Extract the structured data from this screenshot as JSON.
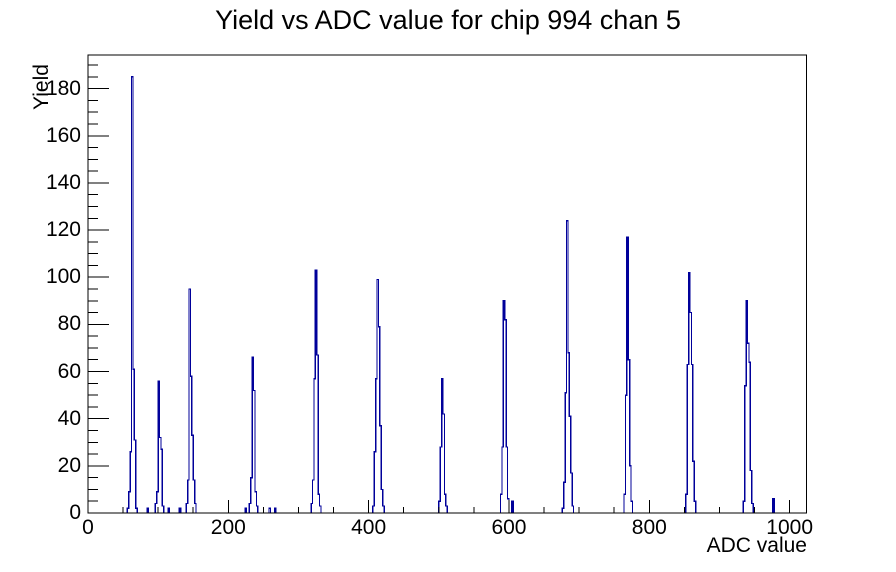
{
  "page": {
    "background": "#ffffff"
  },
  "chart_data": {
    "type": "bar",
    "style": "step-histogram",
    "title": "Yield vs ADC value for chip 994 chan 5",
    "xlabel": "ADC value",
    "ylabel": "Yield",
    "xlim": [
      0,
      1024
    ],
    "ylim": [
      0,
      194.25
    ],
    "x_major_ticks": [
      0,
      200,
      400,
      600,
      800,
      1000
    ],
    "x_minor_tick_step": 50,
    "y_major_ticks": [
      0,
      20,
      40,
      60,
      80,
      100,
      120,
      140,
      160,
      180
    ],
    "y_minor_tick_step": 5,
    "grid": false,
    "legend": "none",
    "bin_width": 2,
    "line_color": "#00009a",
    "axis_color": "#000000",
    "background_color": "#ffffff",
    "peak_summary": [
      {
        "adc": 62,
        "yield": 185
      },
      {
        "adc": 100,
        "yield": 56
      },
      {
        "adc": 144,
        "yield": 95
      },
      {
        "adc": 234,
        "yield": 66
      },
      {
        "adc": 324,
        "yield": 103
      },
      {
        "adc": 412,
        "yield": 99
      },
      {
        "adc": 504,
        "yield": 57
      },
      {
        "adc": 592,
        "yield": 90
      },
      {
        "adc": 682,
        "yield": 124
      },
      {
        "adc": 768,
        "yield": 117
      },
      {
        "adc": 856,
        "yield": 102
      },
      {
        "adc": 938,
        "yield": 90
      }
    ],
    "bins": [
      [
        56,
        2
      ],
      [
        58,
        9
      ],
      [
        60,
        26
      ],
      [
        62,
        185
      ],
      [
        64,
        61
      ],
      [
        66,
        31
      ],
      [
        68,
        2
      ],
      [
        84,
        2
      ],
      [
        96,
        4
      ],
      [
        98,
        9
      ],
      [
        100,
        56
      ],
      [
        102,
        32
      ],
      [
        104,
        27
      ],
      [
        106,
        3
      ],
      [
        114,
        2
      ],
      [
        130,
        2
      ],
      [
        140,
        4
      ],
      [
        142,
        14
      ],
      [
        144,
        95
      ],
      [
        146,
        58
      ],
      [
        148,
        33
      ],
      [
        150,
        14
      ],
      [
        152,
        4
      ],
      [
        224,
        2
      ],
      [
        230,
        4
      ],
      [
        232,
        15
      ],
      [
        234,
        66
      ],
      [
        236,
        52
      ],
      [
        238,
        9
      ],
      [
        240,
        3
      ],
      [
        258,
        2
      ],
      [
        266,
        2
      ],
      [
        318,
        4
      ],
      [
        320,
        14
      ],
      [
        322,
        57
      ],
      [
        324,
        103
      ],
      [
        326,
        67
      ],
      [
        328,
        8
      ],
      [
        330,
        3
      ],
      [
        406,
        3
      ],
      [
        408,
        26
      ],
      [
        410,
        57
      ],
      [
        412,
        99
      ],
      [
        414,
        79
      ],
      [
        416,
        37
      ],
      [
        418,
        10
      ],
      [
        420,
        3
      ],
      [
        500,
        5
      ],
      [
        502,
        28
      ],
      [
        504,
        57
      ],
      [
        506,
        42
      ],
      [
        508,
        8
      ],
      [
        510,
        3
      ],
      [
        588,
        8
      ],
      [
        590,
        28
      ],
      [
        592,
        90
      ],
      [
        594,
        82
      ],
      [
        596,
        28
      ],
      [
        598,
        6
      ],
      [
        604,
        5
      ],
      [
        676,
        2
      ],
      [
        678,
        13
      ],
      [
        680,
        51
      ],
      [
        682,
        124
      ],
      [
        684,
        68
      ],
      [
        686,
        41
      ],
      [
        688,
        17
      ],
      [
        690,
        3
      ],
      [
        764,
        8
      ],
      [
        766,
        50
      ],
      [
        768,
        117
      ],
      [
        770,
        65
      ],
      [
        772,
        20
      ],
      [
        774,
        5
      ],
      [
        852,
        8
      ],
      [
        854,
        63
      ],
      [
        856,
        102
      ],
      [
        858,
        85
      ],
      [
        860,
        63
      ],
      [
        862,
        22
      ],
      [
        864,
        5
      ],
      [
        934,
        5
      ],
      [
        936,
        54
      ],
      [
        938,
        90
      ],
      [
        940,
        72
      ],
      [
        942,
        64
      ],
      [
        944,
        18
      ],
      [
        946,
        4
      ],
      [
        976,
        6
      ]
    ]
  }
}
